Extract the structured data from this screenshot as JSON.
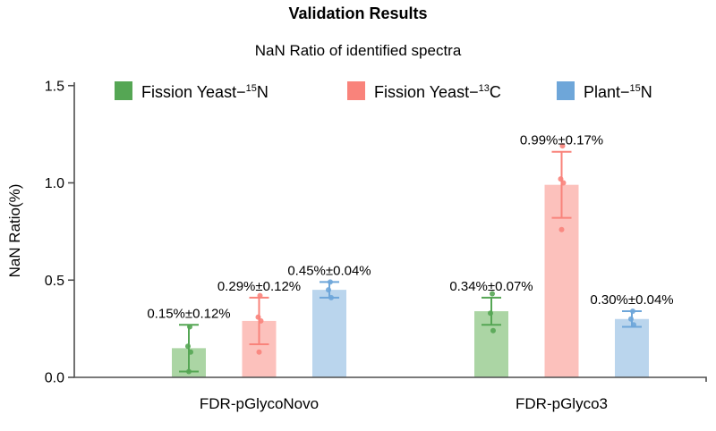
{
  "header": {
    "title": "Validation Results",
    "subtitle": "NaN Ratio of identified spectra"
  },
  "chart_data": {
    "type": "bar",
    "title": "Validation Results",
    "subtitle": "NaN Ratio of identified spectra",
    "xlabel": "",
    "ylabel": "NaN Ratio(%)",
    "ylim": [
      0,
      1.5
    ],
    "yticks": [
      0,
      0.5,
      1.0,
      1.5
    ],
    "ytick_labels": [
      "0.0",
      "0.5",
      "1.0",
      "1.5"
    ],
    "categories": [
      "FDR-pGlycoNovo",
      "FDR-pGlyco3"
    ],
    "legend_position": "top",
    "grid": false,
    "axis_color": "#4e4e4e",
    "series": [
      {
        "name": "Fission Yeast-15N",
        "label_prefix": "Fission Yeast−",
        "label_sup": "15",
        "label_suffix": "N",
        "color": "#55a654",
        "fill": "#abd5a4",
        "values": [
          0.15,
          0.34
        ],
        "errors": [
          0.12,
          0.07
        ],
        "annotations": [
          "0.15%±0.12%",
          "0.34%±0.07%"
        ],
        "points": [
          [
            0.26,
            0.16,
            0.13,
            0.03
          ],
          [
            0.43,
            0.33,
            0.24
          ]
        ]
      },
      {
        "name": "Fission Yeast-13C",
        "label_prefix": "Fission Yeast−",
        "label_sup": "13",
        "label_suffix": "C",
        "color": "#f9837b",
        "fill": "#fcc1bc",
        "values": [
          0.29,
          0.99
        ],
        "errors": [
          0.12,
          0.17
        ],
        "annotations": [
          "0.29%±0.12%",
          "0.99%±0.17%"
        ],
        "points": [
          [
            0.42,
            0.31,
            0.29,
            0.13
          ],
          [
            1.19,
            1.02,
            1.0,
            0.76
          ]
        ]
      },
      {
        "name": "Plant-15N",
        "label_prefix": "Plant−",
        "label_sup": "15",
        "label_suffix": "N",
        "color": "#6ea6d9",
        "fill": "#bad5ed",
        "values": [
          0.45,
          0.3
        ],
        "errors": [
          0.04,
          0.04
        ],
        "annotations": [
          "0.45%±0.04%",
          "0.30%±0.04%"
        ],
        "points": [
          [
            0.49,
            0.45,
            0.41
          ],
          [
            0.34,
            0.3,
            0.27
          ]
        ]
      }
    ]
  }
}
